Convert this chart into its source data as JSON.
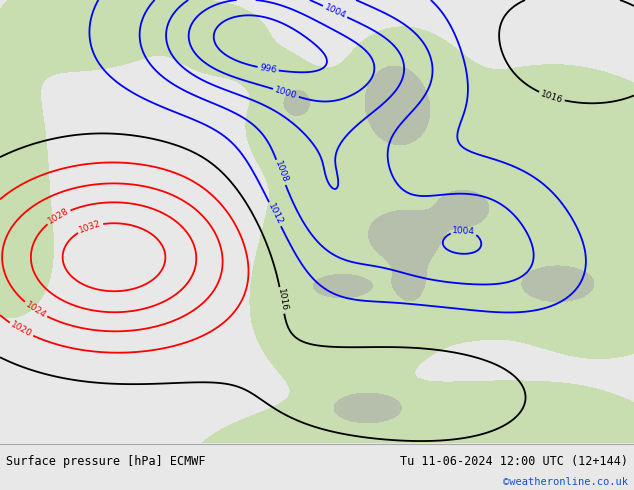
{
  "title_left": "Surface pressure [hPa] ECMWF",
  "title_right": "Tu 11-06-2024 12:00 UTC (12+144)",
  "credit": "©weatheronline.co.uk",
  "sea_color": "#dce8f0",
  "land_color": "#c8ddb0",
  "mountain_color": "#a8a8a8",
  "footer_bg": "#e8e8e8",
  "credit_color": "#1155cc",
  "footer_fontsize": 8.5,
  "isobar_lw": 1.3
}
